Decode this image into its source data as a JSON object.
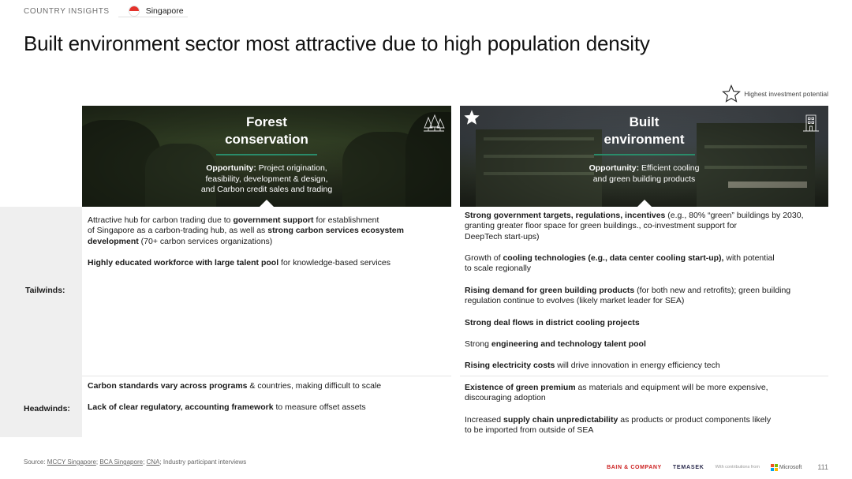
{
  "header": {
    "section": "COUNTRY INSIGHTS",
    "country": "Singapore",
    "title": "Built environment sector most attractive due to high population density"
  },
  "legend": {
    "text": "Highest investment potential",
    "icon": "star-outline-icon"
  },
  "rows": {
    "tailwinds": "Tailwinds:",
    "headwinds": "Headwinds:"
  },
  "forest": {
    "title_line1": "Forest",
    "title_line2": "conservation",
    "opp_label": "Opportunity:",
    "opp_l1": " Project origination,",
    "opp_l2": "feasibility, development & design,",
    "opp_l3": "and Carbon credit sales and trading",
    "icon": "forest-icon",
    "tailwinds": [
      {
        "l1a": "Attractive hub for carbon trading due to ",
        "l1b": "government support",
        "l1c": " for establishment",
        "l2a": "of Singapore as a carbon-trading hub, as well as ",
        "l2b": "strong carbon services ecosystem",
        "l3a": "development",
        "l3b": " (70+ carbon services organizations)"
      },
      {
        "a": "Highly educated workforce with large talent pool",
        "b": " for knowledge-based services"
      }
    ],
    "headwinds": [
      {
        "a": "Carbon standards vary across programs",
        "b": " & countries, making difficult to scale"
      },
      {
        "a": "Lack of clear regulatory, accounting framework",
        "b": " to measure offset assets"
      }
    ]
  },
  "built": {
    "title_line1": "Built",
    "title_line2": "environment",
    "opp_label": "Opportunity:",
    "opp_l1": " Efficient cooling",
    "opp_l2": "and green building products",
    "icon": "building-icon",
    "star_icon": "star-filled-icon",
    "tailwinds": {
      "t1": {
        "a": "Strong government targets, regulations, incentives",
        "b": " (e.g., 80% “green” buildings by 2030,",
        "l2": "granting greater floor space for green buildings., co-investment support for",
        "l3": "DeepTech start-ups)"
      },
      "t2": {
        "a": "Growth of ",
        "b": "cooling technologies (e.g., data center cooling start-up),",
        "c": " with potential",
        "l2": "to scale regionally"
      },
      "t3": {
        "a": "Rising demand for green building products",
        "b": " (for both new and retrofits); green building",
        "l2": "regulation continue to evolves (likely market leader for SEA)"
      },
      "t4": {
        "a": "Strong deal flows in district cooling projects"
      },
      "t5": {
        "a": "Strong ",
        "b": "engineering and technology talent pool"
      },
      "t6": {
        "a": "Rising electricity costs",
        "b": " will drive innovation in energy efficiency tech"
      }
    },
    "headwinds": {
      "h1": {
        "a": "Existence of green premium",
        "b": " as materials and equipment will be more expensive,",
        "l2": "discouraging adoption"
      },
      "h2": {
        "a": "Increased ",
        "b": "supply chain unpredictability",
        "c": " as products or product components likely",
        "l2": "to be imported from outside of SEA"
      }
    }
  },
  "source": {
    "prefix": "Source: ",
    "link1": "MCCY Singapore",
    "sep1": "; ",
    "link2": "BCA Singapore",
    "sep2": "; ",
    "link3": "CNA",
    "suffix": "; Industry participant interviews"
  },
  "footer": {
    "bain": "BAIN & COMPANY",
    "temasek": "TEMASEK",
    "contrib": "With contributions from",
    "microsoft": "Microsoft",
    "page": "111"
  }
}
